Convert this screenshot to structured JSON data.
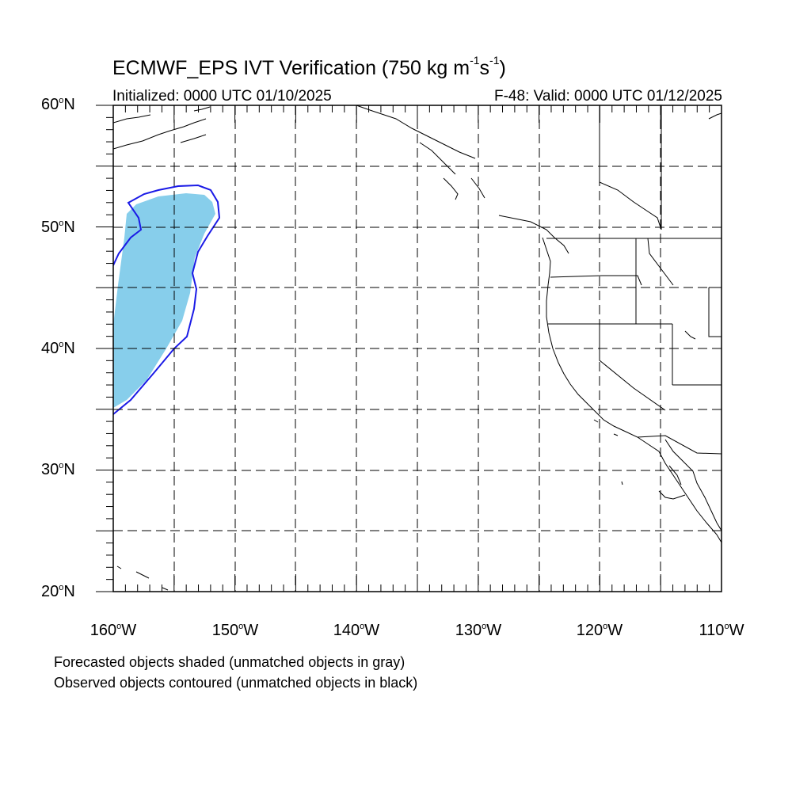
{
  "title": {
    "prefix": "ECMWF_EPS IVT Verification (750 kg m",
    "exp1": "-1",
    "mid": "s",
    "exp2": "-1",
    "suffix": ")"
  },
  "initialized": "Initialized: 0000 UTC 01/10/2025",
  "valid": "F-48: Valid: 0000 UTC 01/12/2025",
  "lat_labels": [
    {
      "value": "60",
      "hemi": "N"
    },
    {
      "value": "50",
      "hemi": "N"
    },
    {
      "value": "40",
      "hemi": "N"
    },
    {
      "value": "30",
      "hemi": "N"
    },
    {
      "value": "20",
      "hemi": "N"
    }
  ],
  "lon_labels": [
    {
      "value": "160",
      "hemi": "W"
    },
    {
      "value": "150",
      "hemi": "W"
    },
    {
      "value": "140",
      "hemi": "W"
    },
    {
      "value": "130",
      "hemi": "W"
    },
    {
      "value": "120",
      "hemi": "W"
    },
    {
      "value": "110",
      "hemi": "W"
    }
  ],
  "legend": {
    "forecast": "Forecasted objects shaded (unmatched objects in gray)",
    "observed": "Observed objects contoured (unmatched objects in black)"
  },
  "map": {
    "extent": {
      "lon_min": -160,
      "lon_max": -110,
      "lat_min": 20,
      "lat_max": 60
    },
    "gridlines": "dashed every 5 degrees",
    "colors": {
      "forecast_fill": "#87ceeb",
      "observed_contour": "#1a1ae6",
      "coastline": "#000000",
      "grid": "#000000"
    }
  }
}
